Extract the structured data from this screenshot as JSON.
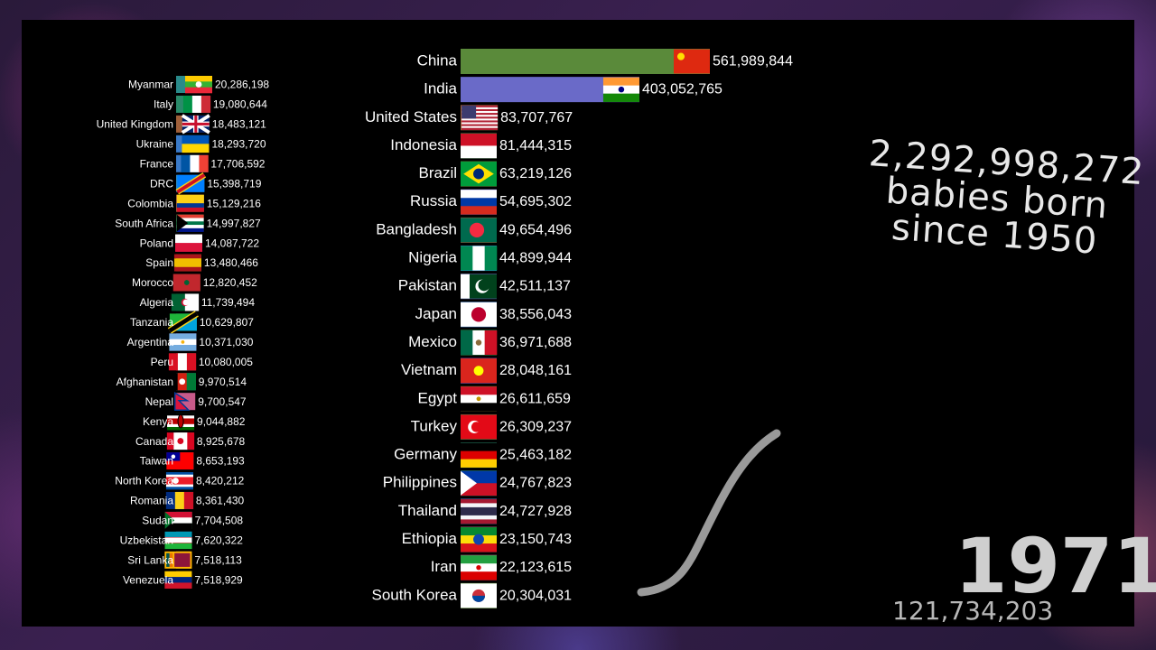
{
  "headline": {
    "total": "2,292,998,272",
    "line2": "babies born",
    "line3": "since 1950"
  },
  "year": "1971",
  "year_total": "121,734,203",
  "colors": {
    "background": "#000000",
    "text": "#ffffff",
    "curve": "#9a9a9a"
  },
  "chart_data": [
    {
      "type": "bar",
      "title": "",
      "orientation": "horizontal",
      "xlim": [
        0,
        561989844
      ],
      "series": [
        {
          "values": [
            561989844,
            403052765,
            83707767,
            81444315,
            63219126,
            54695302,
            49654496,
            44899944,
            42511137,
            38556043,
            36971688,
            28048161,
            26611659,
            26309237,
            25463182,
            24767823,
            24727928,
            23150743,
            22123615,
            20304031
          ]
        }
      ],
      "categories": [
        "China",
        "India",
        "United States",
        "Indonesia",
        "Brazil",
        "Russia",
        "Bangladesh",
        "Nigeria",
        "Pakistan",
        "Japan",
        "Mexico",
        "Vietnam",
        "Egypt",
        "Turkey",
        "Germany",
        "Philippines",
        "Thailand",
        "Ethiopia",
        "Iran",
        "South Korea"
      ],
      "value_labels": [
        "561,989,844",
        "403,052,765",
        "83,707,767",
        "81,444,315",
        "63,219,126",
        "54,695,302",
        "49,654,496",
        "44,899,944",
        "42,511,137",
        "38,556,043",
        "36,971,688",
        "28,048,161",
        "26,611,659",
        "26,309,237",
        "25,463,182",
        "24,767,823",
        "24,727,928",
        "23,150,743",
        "22,123,615",
        "20,304,031"
      ],
      "bar_colors": [
        "#5a8a3a",
        "#6a6ac8",
        "#a0603a",
        "#3a8a4a",
        "#5a8a3a",
        "#6a6ac8",
        "#a0603a",
        "#2a8ac8",
        "#6a6ac8",
        "#3a7ac8",
        "#2a8a4a",
        "#8a5ac8",
        "#8a7a2a",
        "#2a8a4a",
        "#2a8a6a",
        "#2a8a6a",
        "#3a7ac8",
        "#c85a8a",
        "#c85a8a",
        "#5a8a3a"
      ],
      "flags": [
        "china",
        "india",
        "usa",
        "indonesia",
        "brazil",
        "russia",
        "bangladesh",
        "nigeria",
        "pakistan",
        "japan",
        "mexico",
        "vietnam",
        "egypt",
        "turkey",
        "germany",
        "philippines",
        "thailand",
        "ethiopia",
        "iran",
        "southkorea"
      ]
    },
    {
      "type": "bar",
      "title": "",
      "orientation": "horizontal",
      "categories": [
        "Myanmar",
        "Italy",
        "United Kingdom",
        "Ukraine",
        "France",
        "DRC",
        "Colombia",
        "South Africa",
        "Poland",
        "Spain",
        "Morocco",
        "Algeria",
        "Tanzania",
        "Argentina",
        "Peru",
        "Afghanistan",
        "Nepal",
        "Kenya",
        "Canada",
        "Taiwan",
        "North Korea",
        "Romania",
        "Sudan",
        "Uzbekistan",
        "Sri Lanka",
        "Venezuela"
      ],
      "values": [
        20286198,
        19080644,
        18483121,
        18293720,
        17706592,
        15398719,
        15129216,
        14997827,
        14087722,
        13480466,
        12820452,
        11739494,
        10629807,
        10371030,
        10080005,
        9970514,
        9700547,
        9044882,
        8925678,
        8653193,
        8420212,
        8361430,
        7704508,
        7620322,
        7518113,
        7518929
      ],
      "value_labels": [
        "20,286,198",
        "19,080,644",
        "18,483,121",
        "18,293,720",
        "17,706,592",
        "15,398,719",
        "15,129,216",
        "14,997,827",
        "14,087,722",
        "13,480,466",
        "12,820,452",
        "11,739,494",
        "10,629,807",
        "10,371,030",
        "10,080,005",
        "9,970,514",
        "9,700,547",
        "9,044,882",
        "8,925,678",
        "8,653,193",
        "8,420,212",
        "8,361,430",
        "7,704,508",
        "7,620,322",
        "7,518,113",
        "7,518,929"
      ],
      "bar_colors": [
        "#2a8a8a",
        "#2a8a6a",
        "#a0603a",
        "#3a7ac8",
        "#3a7ac8",
        "#2a8ac8",
        "#a0603a",
        "#2a8a4a",
        "#8a5ac8",
        "#c8a02a",
        "#8a5a3a",
        "#3a8a4a",
        "#2a8ac8",
        "#8a5ac8",
        "#c85a5a",
        "#3a8a8a",
        "#c85a8a",
        "#2a8a4a",
        "#c85a5a",
        "#3a7ac8",
        "#3a7ac8",
        "#2a8ac8",
        "#3a8a4a",
        "#3a8ac8",
        "#c8a02a",
        "#c8a02a"
      ],
      "flags": [
        "myanmar",
        "italy",
        "uk",
        "ukraine",
        "france",
        "drc",
        "colombia",
        "southafrica",
        "poland",
        "spain",
        "morocco",
        "algeria",
        "tanzania",
        "argentina",
        "peru",
        "afghanistan",
        "nepal",
        "kenya",
        "canada",
        "taiwan",
        "northkorea",
        "romania",
        "sudan",
        "uzbekistan",
        "srilanka",
        "venezuela"
      ]
    }
  ]
}
